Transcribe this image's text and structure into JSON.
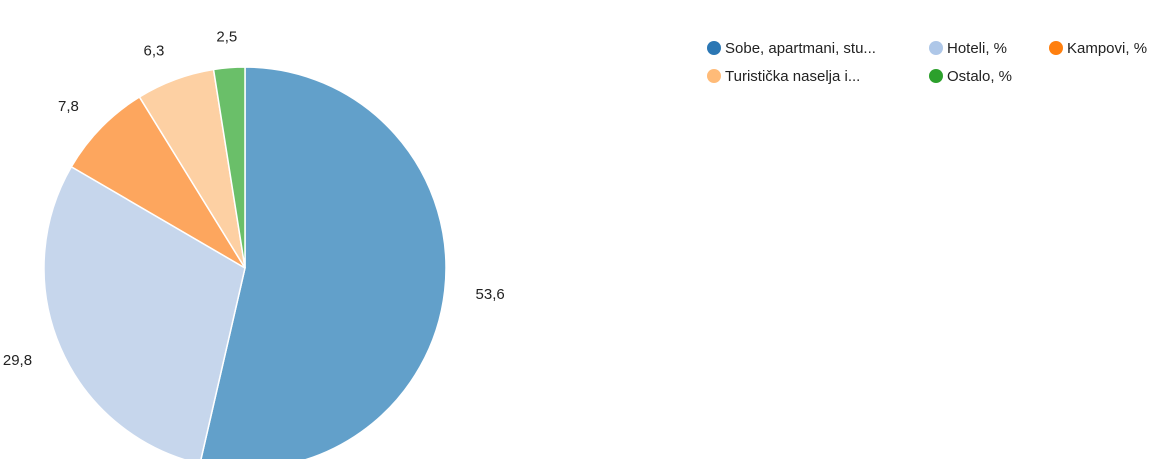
{
  "chart_data": {
    "type": "pie",
    "title": "",
    "legend_placement": "top-right",
    "slices": [
      {
        "label": "Sobe, apartmani, stu...",
        "value": 53.6,
        "value_text": "53,6",
        "color": "#62a0ca",
        "legend_color": "#2b77b4"
      },
      {
        "label": "Hoteli, %",
        "value": 29.8,
        "value_text": "29,8",
        "color": "#c6d6ec",
        "legend_color": "#aec7e8"
      },
      {
        "label": "Kampovi, %",
        "value": 7.8,
        "value_text": "7,8",
        "color": "#fda65e",
        "legend_color": "#ff7f0e"
      },
      {
        "label": "Turistička naselja i...",
        "value": 6.3,
        "value_text": "6,3",
        "color": "#fdd0a3",
        "legend_color": "#ffbb78"
      },
      {
        "label": "Ostalo, %",
        "value": 2.5,
        "value_text": "2,5",
        "color": "#6abf69",
        "legend_color": "#2ca02c"
      }
    ]
  }
}
